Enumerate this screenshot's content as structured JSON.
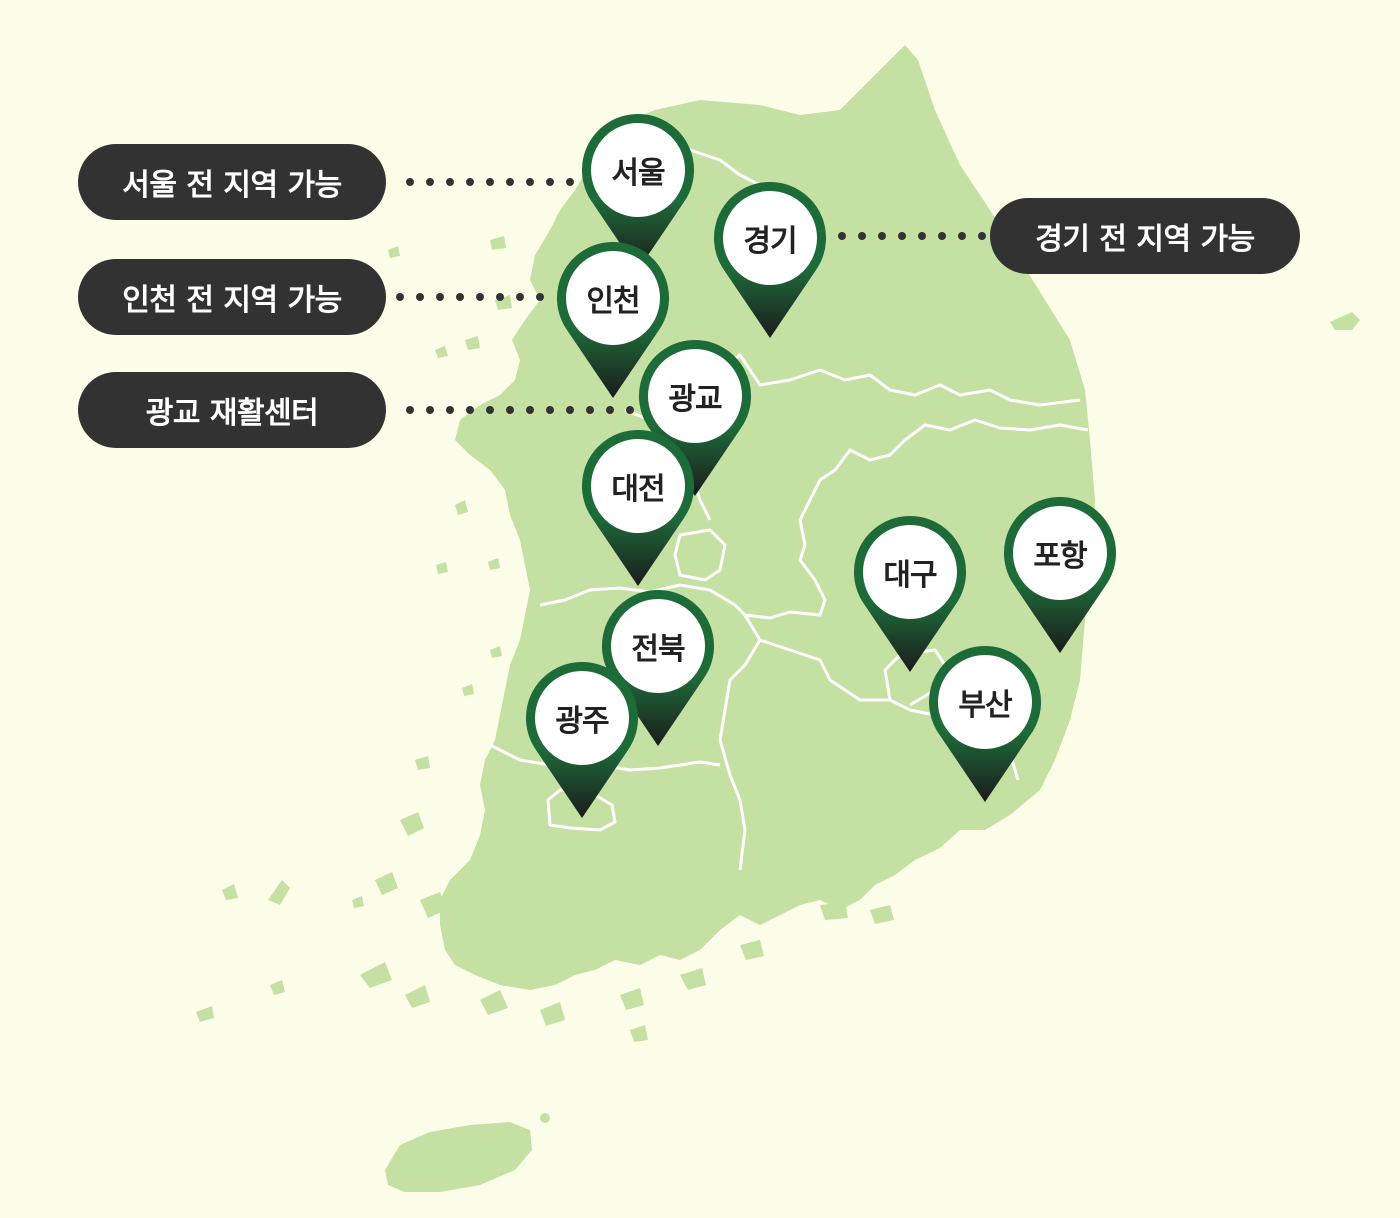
{
  "colors": {
    "background": "#fdfeea",
    "land": "#c5e0a3",
    "border": "#ffffff",
    "pill": "#323232",
    "pill_text": "#ffffff",
    "pin_green": "#1e6b3a",
    "pin_dark": "#1b1b1b",
    "pin_face": "#ffffff",
    "dots": "#333333"
  },
  "callouts": [
    {
      "id": "seoul",
      "label": "서울 전 지역 가능"
    },
    {
      "id": "incheon",
      "label": "인천 전 지역 가능"
    },
    {
      "id": "gwanggyo",
      "label": "광교 재활센터"
    },
    {
      "id": "gyeonggi",
      "label": "경기 전 지역 가능"
    }
  ],
  "pins": [
    {
      "id": "seoul",
      "label": "서울",
      "icon": "map-pin-icon"
    },
    {
      "id": "gyeonggi",
      "label": "경기",
      "icon": "map-pin-icon"
    },
    {
      "id": "incheon",
      "label": "인천",
      "icon": "map-pin-icon"
    },
    {
      "id": "gwanggyo",
      "label": "광교",
      "icon": "map-pin-icon"
    },
    {
      "id": "daejeon",
      "label": "대전",
      "icon": "map-pin-icon"
    },
    {
      "id": "daegu",
      "label": "대구",
      "icon": "map-pin-icon"
    },
    {
      "id": "pohang",
      "label": "포항",
      "icon": "map-pin-icon"
    },
    {
      "id": "jeonbuk",
      "label": "전북",
      "icon": "map-pin-icon"
    },
    {
      "id": "gwangju",
      "label": "광주",
      "icon": "map-pin-icon"
    },
    {
      "id": "busan",
      "label": "부산",
      "icon": "map-pin-icon"
    }
  ]
}
